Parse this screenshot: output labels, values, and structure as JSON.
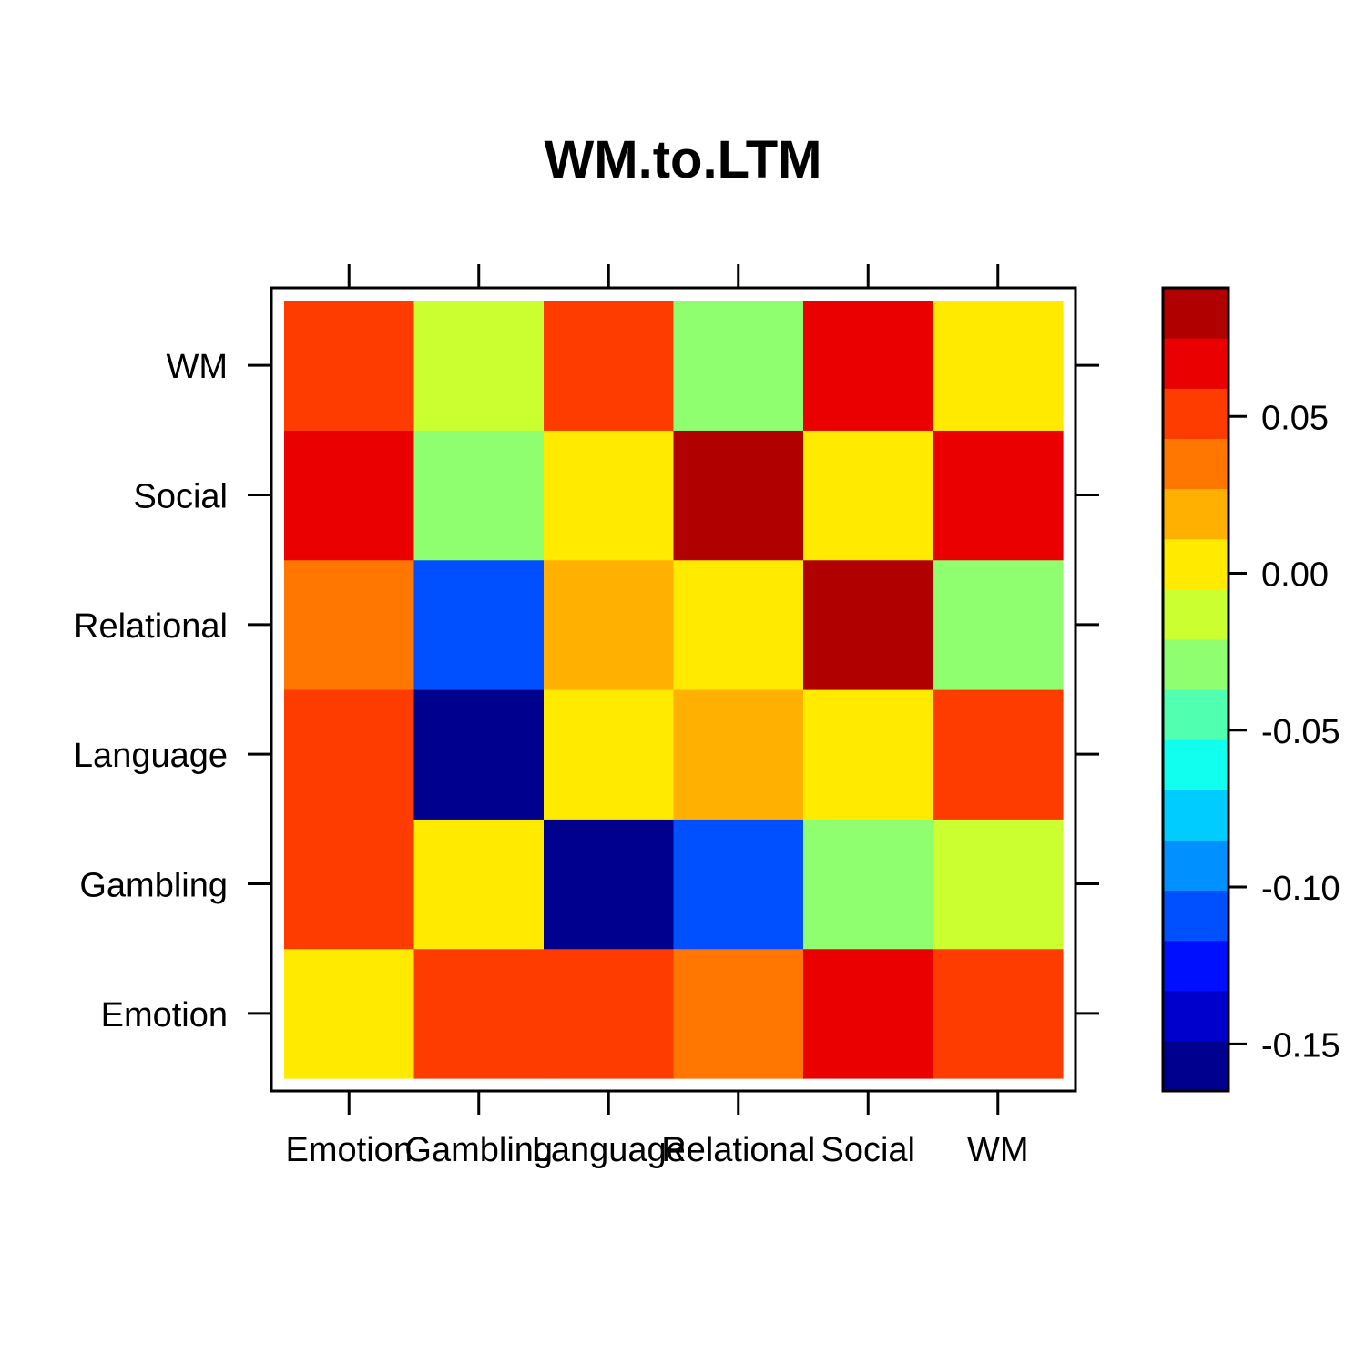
{
  "chart_data": {
    "type": "heatmap",
    "title": "WM.to.LTM",
    "xlabel": "",
    "ylabel": "",
    "x_categories": [
      "Emotion",
      "Gambling",
      "Language",
      "Relational",
      "Social",
      "WM"
    ],
    "y_categories": [
      "Emotion",
      "Gambling",
      "Language",
      "Relational",
      "Social",
      "WM"
    ],
    "values": [
      [
        0.005,
        0.055,
        0.055,
        0.035,
        0.07,
        0.055
      ],
      [
        0.055,
        0.005,
        -0.16,
        -0.115,
        -0.025,
        -0.015
      ],
      [
        0.055,
        -0.16,
        0.005,
        0.02,
        0.005,
        0.055
      ],
      [
        0.035,
        -0.115,
        0.02,
        0.005,
        0.085,
        -0.025
      ],
      [
        0.07,
        -0.025,
        0.005,
        0.085,
        0.005,
        0.07
      ],
      [
        0.055,
        -0.015,
        0.055,
        -0.025,
        0.07,
        0.005
      ]
    ],
    "colorbar": {
      "breaks": [
        -0.165,
        -0.149,
        -0.133,
        -0.117,
        -0.101,
        -0.085,
        -0.069,
        -0.053,
        -0.037,
        -0.021,
        -0.005,
        0.011,
        0.027,
        0.043,
        0.059,
        0.075,
        0.091
      ],
      "colors": [
        "#00008f",
        "#0000cc",
        "#0010ff",
        "#0050ff",
        "#0090ff",
        "#00ccff",
        "#10ffef",
        "#50ffaf",
        "#8fff70",
        "#ccff30",
        "#ffea00",
        "#ffb000",
        "#ff7600",
        "#ff3c00",
        "#ea0000",
        "#b00000"
      ],
      "ticks": [
        0.05,
        0.0,
        -0.05,
        -0.1,
        -0.15
      ],
      "tick_labels": [
        "0.05",
        "0.00",
        "-0.05",
        "-0.10",
        "-0.15"
      ]
    },
    "grid": false,
    "legend": "right"
  }
}
